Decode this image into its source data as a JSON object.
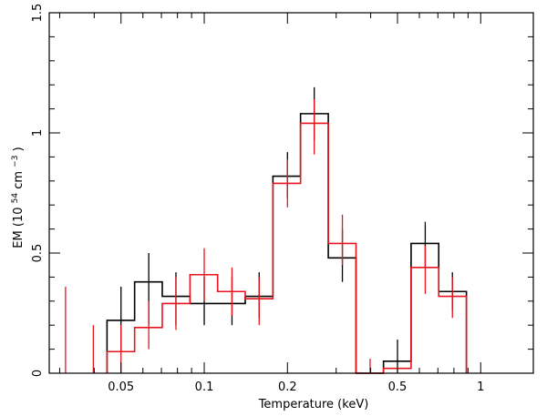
{
  "chart_data": {
    "type": "line",
    "xlabel": "Temperature (keV)",
    "ylabel_parts": {
      "prefix": "EM (10",
      "sup1": "54",
      "mid": " cm",
      "sup2": "−3",
      "suffix": " )"
    },
    "xscale": "log",
    "xlim": [
      0.0275,
      1.55
    ],
    "ylim": [
      0,
      1.5
    ],
    "x_ticks": [
      {
        "value": 0.05,
        "label": "0.05"
      },
      {
        "value": 0.1,
        "label": "0.1"
      },
      {
        "value": 0.2,
        "label": "0.2"
      },
      {
        "value": 0.5,
        "label": "0.5"
      },
      {
        "value": 1,
        "label": "1"
      }
    ],
    "y_ticks": [
      {
        "value": 0,
        "label": "0"
      },
      {
        "value": 0.5,
        "label": "0.5"
      },
      {
        "value": 1,
        "label": "1"
      },
      {
        "value": 1.5,
        "label": "1.5"
      }
    ],
    "grid": false,
    "series": [
      {
        "color": "#000000",
        "bins": [
          {
            "x0": 0.0445,
            "x1": 0.056,
            "y": 0.22,
            "xc": 0.05,
            "err": [
              0.085,
              0.36
            ]
          },
          {
            "x0": 0.056,
            "x1": 0.0705,
            "y": 0.38,
            "xc": 0.063,
            "err": [
              0.2,
              0.5
            ]
          },
          {
            "x0": 0.0705,
            "x1": 0.0888,
            "y": 0.32,
            "xc": 0.079,
            "err": [
              0.2,
              0.42
            ]
          },
          {
            "x0": 0.0888,
            "x1": 0.1118,
            "y": 0.29,
            "xc": 0.1,
            "err": [
              0.2,
              0.4
            ]
          },
          {
            "x0": 0.1118,
            "x1": 0.1407,
            "y": 0.29,
            "xc": 0.126,
            "err": [
              0.2,
              0.4
            ]
          },
          {
            "x0": 0.1407,
            "x1": 0.1772,
            "y": 0.32,
            "xc": 0.158,
            "err": [
              0.23,
              0.42
            ]
          },
          {
            "x0": 0.1772,
            "x1": 0.223,
            "y": 0.82,
            "xc": 0.2,
            "err": [
              0.73,
              0.92
            ]
          },
          {
            "x0": 0.223,
            "x1": 0.281,
            "y": 1.08,
            "xc": 0.25,
            "err": [
              0.97,
              1.19
            ]
          },
          {
            "x0": 0.281,
            "x1": 0.354,
            "y": 0.48,
            "xc": 0.316,
            "err": [
              0.38,
              0.6
            ]
          },
          {
            "x0": 0.354,
            "x1": 0.445,
            "y": 0.0,
            "xc": 0.398,
            "err": null
          },
          {
            "x0": 0.445,
            "x1": 0.56,
            "y": 0.05,
            "xc": 0.5,
            "err": [
              0.0,
              0.14
            ]
          },
          {
            "x0": 0.56,
            "x1": 0.705,
            "y": 0.54,
            "xc": 0.63,
            "err": [
              0.44,
              0.63
            ]
          },
          {
            "x0": 0.705,
            "x1": 0.888,
            "y": 0.34,
            "xc": 0.79,
            "err": [
              0.26,
              0.42
            ]
          }
        ]
      },
      {
        "color": "#e8141e",
        "bins": [
          {
            "x0": 0.0445,
            "x1": 0.056,
            "y": 0.09,
            "xc": 0.05,
            "err": [
              0.0,
              0.2
            ]
          },
          {
            "x0": 0.056,
            "x1": 0.0705,
            "y": 0.19,
            "xc": 0.063,
            "err": [
              0.1,
              0.3
            ]
          },
          {
            "x0": 0.0705,
            "x1": 0.0888,
            "y": 0.29,
            "xc": 0.079,
            "err": [
              0.18,
              0.4
            ]
          },
          {
            "x0": 0.0888,
            "x1": 0.1118,
            "y": 0.41,
            "xc": 0.1,
            "err": [
              0.3,
              0.52
            ]
          },
          {
            "x0": 0.1118,
            "x1": 0.1407,
            "y": 0.34,
            "xc": 0.126,
            "err": [
              0.24,
              0.44
            ]
          },
          {
            "x0": 0.1407,
            "x1": 0.1772,
            "y": 0.31,
            "xc": 0.158,
            "err": [
              0.2,
              0.4
            ]
          },
          {
            "x0": 0.1772,
            "x1": 0.223,
            "y": 0.79,
            "xc": 0.2,
            "err": [
              0.69,
              0.89
            ]
          },
          {
            "x0": 0.223,
            "x1": 0.281,
            "y": 1.04,
            "xc": 0.25,
            "err": [
              0.91,
              1.14
            ]
          },
          {
            "x0": 0.281,
            "x1": 0.354,
            "y": 0.54,
            "xc": 0.316,
            "err": [
              0.45,
              0.66
            ]
          },
          {
            "x0": 0.354,
            "x1": 0.445,
            "y": 0.0,
            "xc": 0.398,
            "err": null
          },
          {
            "x0": 0.445,
            "x1": 0.56,
            "y": 0.02,
            "xc": 0.5,
            "err": null
          },
          {
            "x0": 0.56,
            "x1": 0.705,
            "y": 0.44,
            "xc": 0.63,
            "err": [
              0.33,
              0.53
            ]
          },
          {
            "x0": 0.705,
            "x1": 0.888,
            "y": 0.32,
            "xc": 0.79,
            "err": [
              0.23,
              0.4
            ]
          }
        ],
        "extra_errorbars": [
          {
            "x": 0.0315,
            "err": [
              0.0,
              0.36
            ]
          },
          {
            "x": 0.0397,
            "err": [
              0.0,
              0.2
            ]
          },
          {
            "x": 0.398,
            "err": [
              0.0,
              0.06
            ]
          }
        ]
      }
    ]
  }
}
